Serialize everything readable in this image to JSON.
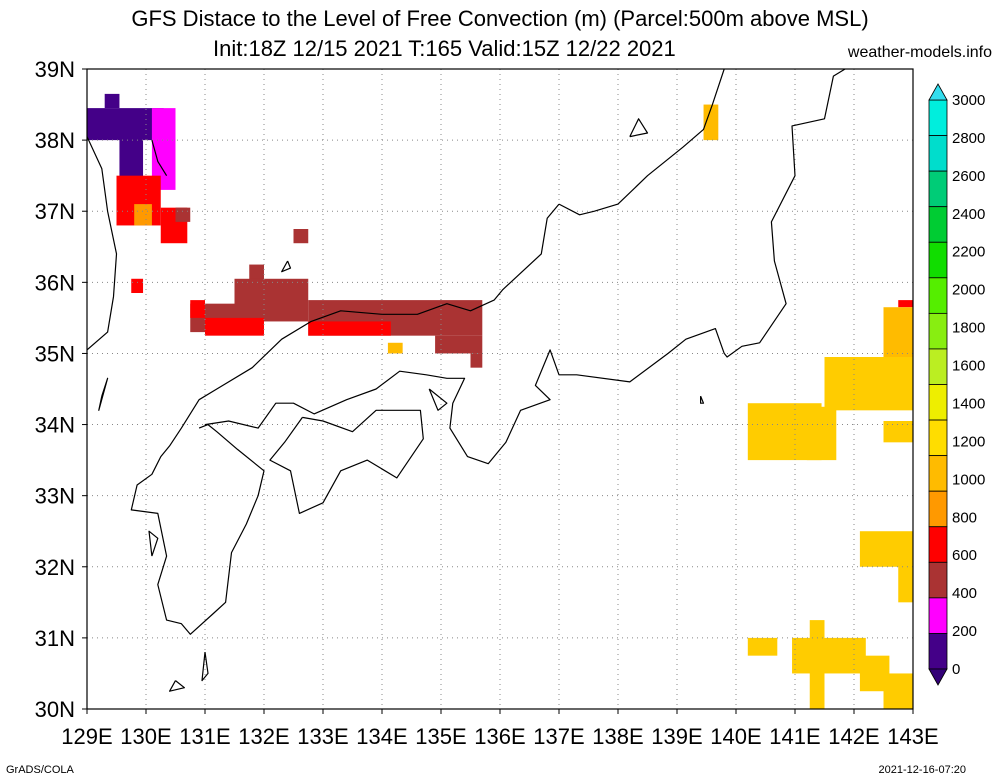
{
  "title": {
    "line1": "GFS Distace to the Level of Free Convection (m) (Parcel:500m above MSL)",
    "line2": "Init:18Z 12/15 2021 T:165 Valid:15Z 12/22 2021",
    "site": "weather-models.info"
  },
  "footer": {
    "left": "GrADS/COLA",
    "right": "2021-12-16-07:20"
  },
  "axes": {
    "lon_labels": [
      "129E",
      "130E",
      "131E",
      "132E",
      "133E",
      "134E",
      "135E",
      "136E",
      "137E",
      "138E",
      "139E",
      "140E",
      "141E",
      "142E",
      "143E"
    ],
    "lat_labels": [
      "39N",
      "38N",
      "37N",
      "36N",
      "35N",
      "34N",
      "33N",
      "32N",
      "31N",
      "30N"
    ],
    "lon_range": [
      129,
      143
    ],
    "lat_range": [
      30,
      39
    ]
  },
  "colorbar": {
    "labels": [
      "3000",
      "2800",
      "2600",
      "2400",
      "2200",
      "2000",
      "1800",
      "1600",
      "1400",
      "1200",
      "1000",
      "800",
      "600",
      "400",
      "200",
      "0"
    ],
    "colors": [
      "#00eedd",
      "#00ddcc",
      "#00cc77",
      "#00cc33",
      "#11dd00",
      "#55ee00",
      "#88ee11",
      "#bbee22",
      "#eeee00",
      "#ffdd00",
      "#ffbb00",
      "#ff9900",
      "#ff0000",
      "#aa3333",
      "#ff00ff",
      "#440088"
    ],
    "top_arrow_color": "#33ddee",
    "bottom_arrow_color": "#330077"
  },
  "field_patches": [
    {
      "lon": 129.0,
      "lat": 38.0,
      "w": 1.3,
      "h": 0.45,
      "color": "#440088"
    },
    {
      "lon": 129.3,
      "lat": 38.45,
      "w": 0.25,
      "h": 0.2,
      "color": "#440088"
    },
    {
      "lon": 129.55,
      "lat": 37.45,
      "w": 0.4,
      "h": 0.6,
      "color": "#440088"
    },
    {
      "lon": 130.1,
      "lat": 37.3,
      "w": 0.4,
      "h": 1.15,
      "color": "#ff00ff"
    },
    {
      "lon": 129.5,
      "lat": 36.8,
      "w": 0.75,
      "h": 0.7,
      "color": "#ff0000"
    },
    {
      "lon": 130.25,
      "lat": 36.55,
      "w": 0.45,
      "h": 0.5,
      "color": "#ff0000"
    },
    {
      "lon": 130.5,
      "lat": 36.85,
      "w": 0.25,
      "h": 0.2,
      "color": "#aa3333"
    },
    {
      "lon": 129.8,
      "lat": 36.8,
      "w": 0.3,
      "h": 0.3,
      "color": "#ff9900"
    },
    {
      "lon": 129.75,
      "lat": 35.85,
      "w": 0.2,
      "h": 0.2,
      "color": "#ff0000"
    },
    {
      "lon": 132.5,
      "lat": 36.55,
      "w": 0.25,
      "h": 0.2,
      "color": "#aa3333"
    },
    {
      "lon": 131.75,
      "lat": 36.0,
      "w": 0.25,
      "h": 0.25,
      "color": "#aa3333"
    },
    {
      "lon": 131.5,
      "lat": 35.45,
      "w": 1.25,
      "h": 0.6,
      "color": "#aa3333"
    },
    {
      "lon": 130.75,
      "lat": 35.3,
      "w": 0.8,
      "h": 0.4,
      "color": "#aa3333"
    },
    {
      "lon": 130.75,
      "lat": 35.5,
      "w": 0.25,
      "h": 0.25,
      "color": "#ff0000"
    },
    {
      "lon": 131.0,
      "lat": 35.25,
      "w": 1.0,
      "h": 0.25,
      "color": "#ff0000"
    },
    {
      "lon": 132.75,
      "lat": 35.25,
      "w": 2.95,
      "h": 0.5,
      "color": "#aa3333"
    },
    {
      "lon": 132.75,
      "lat": 35.25,
      "w": 1.4,
      "h": 0.2,
      "color": "#ff0000"
    },
    {
      "lon": 134.9,
      "lat": 35.0,
      "w": 0.8,
      "h": 0.25,
      "color": "#aa3333"
    },
    {
      "lon": 134.1,
      "lat": 35.0,
      "w": 0.25,
      "h": 0.15,
      "color": "#ffbb00"
    },
    {
      "lon": 135.5,
      "lat": 34.8,
      "w": 0.2,
      "h": 0.2,
      "color": "#aa3333"
    },
    {
      "lon": 139.45,
      "lat": 38.0,
      "w": 0.25,
      "h": 0.5,
      "color": "#ffbb00"
    },
    {
      "lon": 142.75,
      "lat": 35.65,
      "w": 0.25,
      "h": 0.1,
      "color": "#ff0000"
    },
    {
      "lon": 142.5,
      "lat": 34.75,
      "w": 0.5,
      "h": 0.9,
      "color": "#ffbb00"
    },
    {
      "lon": 141.5,
      "lat": 34.2,
      "w": 1.5,
      "h": 0.75,
      "color": "#ffcc00"
    },
    {
      "lon": 141.2,
      "lat": 33.5,
      "w": 0.5,
      "h": 0.75,
      "color": "#ffcc00"
    },
    {
      "lon": 140.2,
      "lat": 33.5,
      "w": 1.25,
      "h": 0.8,
      "color": "#ffcc00"
    },
    {
      "lon": 142.5,
      "lat": 33.75,
      "w": 0.5,
      "h": 0.3,
      "color": "#ffcc00"
    },
    {
      "lon": 142.1,
      "lat": 32.0,
      "w": 0.9,
      "h": 0.5,
      "color": "#ffcc00"
    },
    {
      "lon": 142.75,
      "lat": 31.5,
      "w": 0.25,
      "h": 0.55,
      "color": "#ffcc00"
    },
    {
      "lon": 140.2,
      "lat": 30.75,
      "w": 0.5,
      "h": 0.25,
      "color": "#ffcc00"
    },
    {
      "lon": 141.25,
      "lat": 30.0,
      "w": 0.25,
      "h": 1.25,
      "color": "#ffcc00"
    },
    {
      "lon": 140.95,
      "lat": 30.5,
      "w": 1.25,
      "h": 0.5,
      "color": "#ffcc00"
    },
    {
      "lon": 142.1,
      "lat": 30.25,
      "w": 0.5,
      "h": 0.5,
      "color": "#ffcc00"
    },
    {
      "lon": 142.5,
      "lat": 30.0,
      "w": 0.5,
      "h": 0.5,
      "color": "#ffcc00"
    }
  ],
  "coastlines": [
    [
      [
        129.0,
        35.05
      ],
      [
        129.35,
        35.3
      ],
      [
        129.45,
        35.8
      ],
      [
        129.5,
        36.4
      ],
      [
        129.35,
        37.0
      ],
      [
        129.25,
        37.6
      ],
      [
        129.0,
        38.05
      ]
    ],
    [
      [
        130.1,
        38.0
      ],
      [
        130.2,
        37.7
      ],
      [
        130.35,
        37.5
      ]
    ],
    [
      [
        137.0,
        37.1
      ],
      [
        136.8,
        36.9
      ],
      [
        136.7,
        36.4
      ],
      [
        136.05,
        35.9
      ],
      [
        135.9,
        35.75
      ],
      [
        135.5,
        35.6
      ],
      [
        135.1,
        35.7
      ],
      [
        134.6,
        35.55
      ],
      [
        134.0,
        35.55
      ],
      [
        133.3,
        35.6
      ],
      [
        132.8,
        35.45
      ],
      [
        132.3,
        35.2
      ],
      [
        131.8,
        34.8
      ],
      [
        131.2,
        34.5
      ],
      [
        130.9,
        34.35
      ],
      [
        130.6,
        33.95
      ],
      [
        130.4,
        33.7
      ],
      [
        130.25,
        33.55
      ],
      [
        130.1,
        33.3
      ],
      [
        129.85,
        33.15
      ],
      [
        129.75,
        32.8
      ],
      [
        130.2,
        32.75
      ],
      [
        130.35,
        32.15
      ],
      [
        130.2,
        31.75
      ],
      [
        130.35,
        31.25
      ],
      [
        130.6,
        31.2
      ],
      [
        130.75,
        31.05
      ],
      [
        131.15,
        31.35
      ],
      [
        131.35,
        31.5
      ],
      [
        131.45,
        32.2
      ],
      [
        131.7,
        32.6
      ],
      [
        131.9,
        33.0
      ],
      [
        132.0,
        33.35
      ],
      [
        131.55,
        33.65
      ],
      [
        131.2,
        33.9
      ],
      [
        131.05,
        34.0
      ],
      [
        130.9,
        33.95
      ]
    ],
    [
      [
        131.0,
        34.0
      ],
      [
        131.4,
        34.05
      ],
      [
        131.9,
        33.95
      ],
      [
        132.2,
        34.3
      ],
      [
        132.5,
        34.3
      ],
      [
        132.85,
        34.15
      ],
      [
        133.4,
        34.35
      ],
      [
        133.9,
        34.5
      ],
      [
        134.3,
        34.75
      ],
      [
        134.75,
        34.7
      ],
      [
        135.1,
        34.65
      ],
      [
        135.4,
        34.65
      ],
      [
        135.2,
        34.3
      ],
      [
        135.15,
        33.95
      ],
      [
        135.45,
        33.55
      ],
      [
        135.8,
        33.45
      ],
      [
        136.1,
        33.75
      ],
      [
        136.35,
        34.2
      ],
      [
        136.85,
        34.35
      ],
      [
        136.6,
        34.55
      ],
      [
        136.85,
        35.05
      ],
      [
        137.0,
        34.7
      ],
      [
        137.3,
        34.7
      ],
      [
        138.2,
        34.6
      ],
      [
        138.85,
        35.0
      ],
      [
        139.15,
        35.2
      ],
      [
        139.65,
        35.35
      ],
      [
        139.8,
        35.0
      ],
      [
        139.85,
        34.95
      ],
      [
        140.1,
        35.1
      ],
      [
        140.4,
        35.15
      ],
      [
        140.85,
        35.7
      ],
      [
        140.65,
        36.3
      ],
      [
        140.6,
        36.85
      ],
      [
        141.0,
        37.5
      ],
      [
        140.95,
        38.2
      ],
      [
        141.5,
        38.3
      ],
      [
        141.65,
        38.9
      ],
      [
        141.85,
        39.0
      ]
    ],
    [
      [
        137.0,
        37.1
      ],
      [
        137.35,
        36.95
      ],
      [
        137.6,
        37.0
      ],
      [
        138.0,
        37.1
      ],
      [
        138.5,
        37.5
      ],
      [
        139.1,
        37.9
      ],
      [
        139.45,
        38.15
      ],
      [
        139.6,
        38.5
      ],
      [
        139.8,
        39.0
      ]
    ],
    [
      [
        132.65,
        34.1
      ],
      [
        133.0,
        34.05
      ],
      [
        133.5,
        33.9
      ],
      [
        133.9,
        34.2
      ],
      [
        134.2,
        34.2
      ],
      [
        134.65,
        34.2
      ],
      [
        134.7,
        33.8
      ],
      [
        134.25,
        33.25
      ],
      [
        133.75,
        33.5
      ],
      [
        133.3,
        33.35
      ],
      [
        133.0,
        32.9
      ],
      [
        132.6,
        32.75
      ],
      [
        132.45,
        33.35
      ],
      [
        132.1,
        33.5
      ],
      [
        132.35,
        33.75
      ],
      [
        132.65,
        34.1
      ]
    ],
    [
      [
        134.8,
        34.5
      ],
      [
        134.95,
        34.2
      ],
      [
        135.1,
        34.3
      ],
      [
        134.8,
        34.5
      ]
    ],
    [
      [
        138.2,
        38.05
      ],
      [
        138.35,
        38.3
      ],
      [
        138.5,
        38.1
      ],
      [
        138.2,
        38.05
      ]
    ],
    [
      [
        130.1,
        32.15
      ],
      [
        130.2,
        32.4
      ],
      [
        130.05,
        32.5
      ],
      [
        130.1,
        32.15
      ]
    ],
    [
      [
        129.25,
        34.4
      ],
      [
        129.35,
        34.65
      ],
      [
        129.2,
        34.2
      ],
      [
        129.25,
        34.4
      ]
    ],
    [
      [
        130.5,
        30.4
      ],
      [
        130.65,
        30.3
      ],
      [
        130.4,
        30.25
      ],
      [
        130.5,
        30.4
      ]
    ],
    [
      [
        131.0,
        30.8
      ],
      [
        131.05,
        30.5
      ],
      [
        130.95,
        30.4
      ],
      [
        131.0,
        30.8
      ]
    ],
    [
      [
        132.4,
        36.3
      ],
      [
        132.45,
        36.2
      ],
      [
        132.3,
        36.15
      ],
      [
        132.4,
        36.3
      ]
    ],
    [
      [
        139.4,
        34.4
      ],
      [
        139.45,
        34.3
      ],
      [
        139.4,
        34.3
      ],
      [
        139.4,
        34.4
      ]
    ]
  ]
}
